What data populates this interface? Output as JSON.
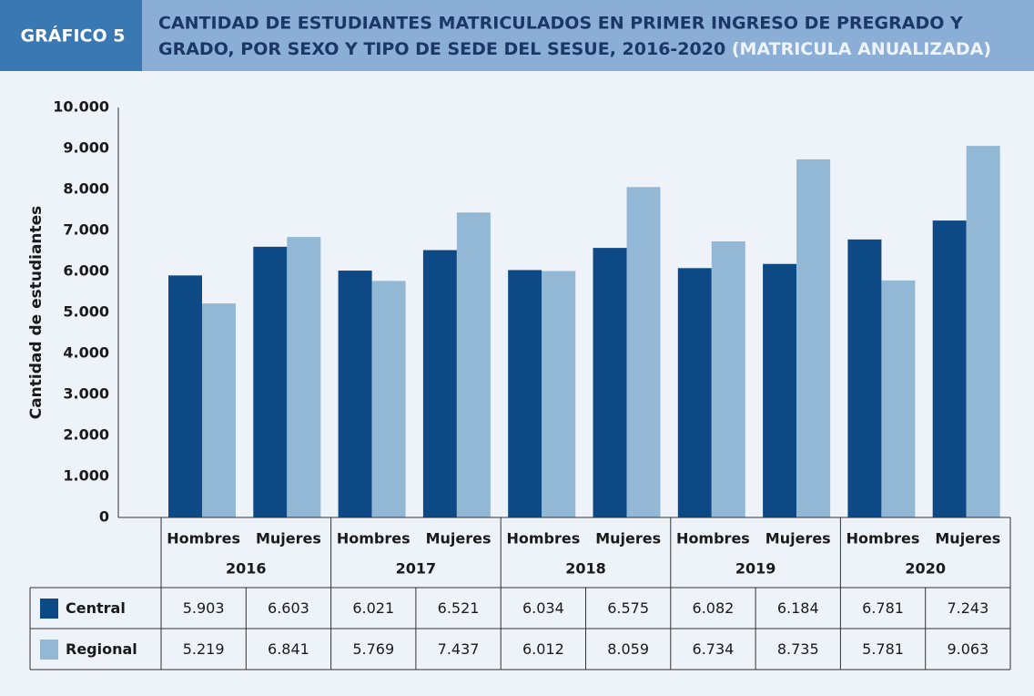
{
  "chart_data": {
    "type": "bar",
    "label": "GRÁFICO 5",
    "title_lines": [
      "CANTIDAD DE ESTUDIANTES MATRICULADOS EN PRIMER INGRESO DE PREGRADO Y",
      "GRADO, POR SEXO Y TIPO DE SEDE DEL SESUE, 2016-2020"
    ],
    "subtitle": "(MATRICULA ANUALIZADA)",
    "y_label": "Cantidad de estudiantes",
    "categories": [
      "Hombres",
      "Mujeres",
      "Hombres",
      "Mujeres",
      "Hombres",
      "Mujeres",
      "Hombres",
      "Mujeres",
      "Hombres",
      "Mujeres"
    ],
    "groups": [
      "2016",
      "2017",
      "2018",
      "2019",
      "2020"
    ],
    "series": [
      {
        "name": "Central",
        "color": "#0d4a85",
        "values": [
          5903,
          6603,
          6021,
          6521,
          6034,
          6575,
          6082,
          6184,
          6781,
          7243
        ],
        "value_labels": [
          "5.903",
          "6.603",
          "6.021",
          "6.521",
          "6.034",
          "6.575",
          "6.082",
          "6.184",
          "6.781",
          "7.243"
        ]
      },
      {
        "name": "Regional",
        "color": "#93b8d6",
        "values": [
          5219,
          6841,
          5769,
          7437,
          6012,
          8059,
          6734,
          8735,
          5781,
          9063
        ],
        "value_labels": [
          "5.219",
          "6.841",
          "5.769",
          "7.437",
          "6.012",
          "8.059",
          "6.734",
          "8.735",
          "5.781",
          "9.063"
        ]
      }
    ],
    "ylim": [
      0,
      10000
    ],
    "yticks": [
      0,
      {
        "value": 1000,
        "label": "1.000"
      },
      {
        "value": 2000,
        "label": "2.000"
      },
      {
        "value": 3000,
        "label": "3.000"
      },
      {
        "value": 4000,
        "label": "4.000"
      },
      {
        "value": 5000,
        "label": "5.000"
      },
      {
        "value": 6000,
        "label": "6.000"
      },
      {
        "value": 7000,
        "label": "7.000"
      },
      {
        "value": 8000,
        "label": "8.000"
      },
      {
        "value": 9000,
        "label": "9.000"
      },
      {
        "value": 10000,
        "label": "10.000"
      }
    ],
    "grid": false
  }
}
